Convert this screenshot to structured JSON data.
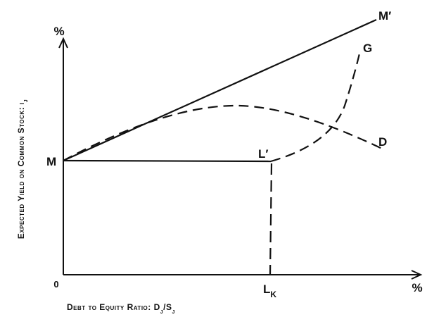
{
  "y_axis": {
    "unit": "%",
    "label": [
      {
        "text": "Expected Yield on Common Stock: i"
      },
      {
        "text": "j",
        "sub": true
      }
    ]
  },
  "x_axis": {
    "unit": "%",
    "origin": "0",
    "label": [
      {
        "text": "Debt to Equity Ratio: D"
      },
      {
        "text": "j",
        "sub": true
      },
      {
        "text": "/S"
      },
      {
        "text": "j",
        "sub": true
      }
    ]
  },
  "points": {
    "M": "M",
    "M_prime": "M′",
    "G": "G",
    "D": "D",
    "L_prime": "L′",
    "L_K": {
      "main": "L",
      "sub": "K"
    }
  }
}
